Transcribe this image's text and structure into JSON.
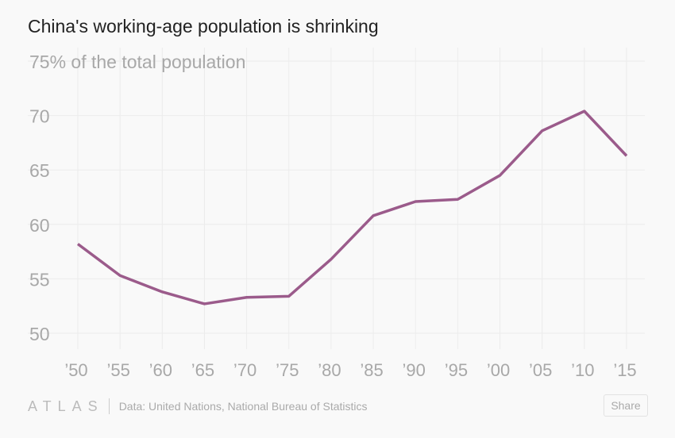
{
  "title": "China's working-age population is shrinking",
  "chart_data": {
    "type": "line",
    "title": "China's working-age population is shrinking",
    "x": [
      1950,
      1955,
      1960,
      1965,
      1970,
      1975,
      1980,
      1985,
      1990,
      1995,
      2000,
      2005,
      2010,
      2015
    ],
    "x_tick_labels": [
      "’50",
      "’55",
      "’60",
      "’65",
      "’70",
      "’75",
      "’80",
      "’85",
      "’90",
      "’95",
      "’00",
      "’05",
      "’10",
      "’15"
    ],
    "series": [
      {
        "values": [
          58.2,
          55.3,
          53.8,
          52.7,
          53.3,
          53.4,
          56.8,
          60.8,
          62.1,
          62.3,
          64.5,
          68.6,
          70.4,
          66.3
        ],
        "color": "#9b5b8b"
      }
    ],
    "y_ticks": [
      50,
      55,
      60,
      65,
      70,
      75
    ],
    "y_tick_labels": [
      "50",
      "55",
      "60",
      "65",
      "70",
      "75% of the total population"
    ],
    "ylim": [
      50,
      75
    ],
    "grid": true
  },
  "footer": {
    "logo": "ATLAS",
    "source": "Data: United Nations, National Bureau of Statistics",
    "share_label": "Share"
  }
}
